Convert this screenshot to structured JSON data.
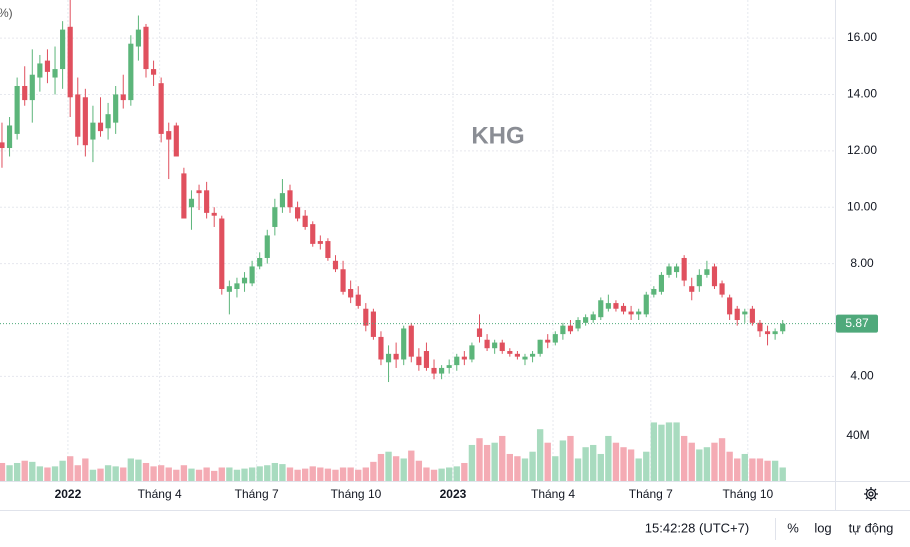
{
  "chart_data": {
    "type": "candlestick",
    "title": "KHG",
    "header_fragment": "%)",
    "up_color": "#5cb57a",
    "down_color": "#e0505e",
    "up_volume_color": "#a8dbbf",
    "down_volume_color": "#f4abb4",
    "last_price_color": "#4fa97b",
    "grid": true,
    "open": [
      12.3,
      12.1,
      12.6,
      14.3,
      13.8,
      14.6,
      15.2,
      14.6,
      14.9,
      16.4,
      14.0,
      13.9,
      12.4,
      13.0,
      12.8,
      13.0,
      14.0,
      13.8,
      15.7,
      16.4,
      14.9,
      14.4,
      12.7,
      12.9,
      11.2,
      10.0,
      10.6,
      10.6,
      9.8,
      9.6,
      7.0,
      7.1,
      7.3,
      7.3,
      7.9,
      8.2,
      9.3,
      10.0,
      10.6,
      10.0,
      9.7,
      9.4,
      8.8,
      8.8,
      8.1,
      7.8,
      7.1,
      6.9,
      6.4,
      6.3,
      5.4,
      4.5,
      4.8,
      4.6,
      5.8,
      4.7,
      4.9,
      4.3,
      4.1,
      4.3,
      4.4,
      4.7,
      4.6,
      5.7,
      5.3,
      5.0,
      5.2,
      4.9,
      4.8,
      4.6,
      4.7,
      4.8,
      5.3,
      5.2,
      5.5,
      5.8,
      5.7,
      5.9,
      6.0,
      6.1,
      6.4,
      6.6,
      6.5,
      6.3,
      6.2,
      6.2,
      6.9,
      7.0,
      7.6,
      7.7,
      8.2,
      7.2,
      7.2,
      7.6,
      7.9,
      7.3,
      6.8,
      6.4,
      6.2,
      6.4,
      5.9,
      5.6,
      5.5,
      5.6
    ],
    "high": [
      13.0,
      13.2,
      14.6,
      15.0,
      15.6,
      15.4,
      15.6,
      15.7,
      16.6,
      17.4,
      14.6,
      14.2,
      13.6,
      13.9,
      13.7,
      14.3,
      14.7,
      16.1,
      16.8,
      16.5,
      15.2,
      14.6,
      13.0,
      13.0,
      11.4,
      10.6,
      10.8,
      10.9,
      10.0,
      9.7,
      7.4,
      7.5,
      7.7,
      8.1,
      8.4,
      9.2,
      10.3,
      11.0,
      10.8,
      10.2,
      9.9,
      9.5,
      9.0,
      8.9,
      8.3,
      8.1,
      7.4,
      7.2,
      6.6,
      6.4,
      5.6,
      5.1,
      5.2,
      5.8,
      5.9,
      5.0,
      5.2,
      4.6,
      4.4,
      4.6,
      4.8,
      4.9,
      5.2,
      6.2,
      5.5,
      5.3,
      5.3,
      5.0,
      4.9,
      4.8,
      4.9,
      5.3,
      5.5,
      5.6,
      5.9,
      6.0,
      6.1,
      6.2,
      6.3,
      6.8,
      6.9,
      6.7,
      6.6,
      6.5,
      6.4,
      7.0,
      7.2,
      7.7,
      8.0,
      8.0,
      8.3,
      7.5,
      7.8,
      8.1,
      8.0,
      7.4,
      6.9,
      6.5,
      6.4,
      6.5,
      6.0,
      5.8,
      5.7,
      6.0
    ],
    "low": [
      11.4,
      11.8,
      12.4,
      13.6,
      13.0,
      14.1,
      14.4,
      14.0,
      14.2,
      13.2,
      12.2,
      11.8,
      11.6,
      12.5,
      12.4,
      12.6,
      13.5,
      13.6,
      15.2,
      14.6,
      14.3,
      12.3,
      11.0,
      11.8,
      9.6,
      9.2,
      9.9,
      9.6,
      9.3,
      6.9,
      6.2,
      6.8,
      7.0,
      7.2,
      7.8,
      8.0,
      9.0,
      9.8,
      9.8,
      9.5,
      9.2,
      8.6,
      8.5,
      8.1,
      7.7,
      6.9,
      6.6,
      6.4,
      5.6,
      5.3,
      4.4,
      3.8,
      4.3,
      4.4,
      4.5,
      4.2,
      4.2,
      3.9,
      3.9,
      4.1,
      4.2,
      4.4,
      4.5,
      5.2,
      4.9,
      4.8,
      4.8,
      4.7,
      4.6,
      4.4,
      4.5,
      4.7,
      5.0,
      5.1,
      5.3,
      5.5,
      5.6,
      5.8,
      5.9,
      6.0,
      6.3,
      6.3,
      6.2,
      6.0,
      6.0,
      6.1,
      6.8,
      6.9,
      7.5,
      7.5,
      7.2,
      6.7,
      7.0,
      7.5,
      7.1,
      6.8,
      6.0,
      5.8,
      5.9,
      5.8,
      5.4,
      5.1,
      5.3,
      5.5
    ],
    "close": [
      12.1,
      12.9,
      14.3,
      13.8,
      14.7,
      15.1,
      14.8,
      14.9,
      16.3,
      13.9,
      12.5,
      12.2,
      13.0,
      12.7,
      13.3,
      14.0,
      13.8,
      15.8,
      16.3,
      14.9,
      14.7,
      12.6,
      12.4,
      11.8,
      9.6,
      10.3,
      10.5,
      9.8,
      9.7,
      7.1,
      7.2,
      7.3,
      7.5,
      7.9,
      8.2,
      9.0,
      10.0,
      10.5,
      10.0,
      9.6,
      9.3,
      8.7,
      8.7,
      8.2,
      7.8,
      7.0,
      6.8,
      6.5,
      5.8,
      5.4,
      4.6,
      4.8,
      4.6,
      5.7,
      4.7,
      4.4,
      4.3,
      4.1,
      4.3,
      4.4,
      4.7,
      4.6,
      5.1,
      5.4,
      5.0,
      5.2,
      4.9,
      4.8,
      4.7,
      4.7,
      4.8,
      5.3,
      5.2,
      5.5,
      5.8,
      5.6,
      6.0,
      6.1,
      6.2,
      6.7,
      6.6,
      6.4,
      6.3,
      6.2,
      6.3,
      6.9,
      7.1,
      7.6,
      7.9,
      7.9,
      7.4,
      7.0,
      7.6,
      7.8,
      7.2,
      6.9,
      6.2,
      6.0,
      6.3,
      5.9,
      5.6,
      5.5,
      5.6,
      5.87
    ],
    "volume": [
      16000000,
      14000000,
      16000000,
      18000000,
      17000000,
      13000000,
      12000000,
      13000000,
      18000000,
      22000000,
      14000000,
      20000000,
      10000000,
      11000000,
      14000000,
      13000000,
      12000000,
      20000000,
      19000000,
      16000000,
      13000000,
      14000000,
      12000000,
      10000000,
      14000000,
      11000000,
      10000000,
      12000000,
      9000000,
      12000000,
      12000000,
      10000000,
      11000000,
      12000000,
      13000000,
      14000000,
      16000000,
      15000000,
      12000000,
      10000000,
      11000000,
      13000000,
      12000000,
      11000000,
      10000000,
      12000000,
      12000000,
      10000000,
      12000000,
      17000000,
      24000000,
      26000000,
      22000000,
      20000000,
      27000000,
      18000000,
      12000000,
      10000000,
      11000000,
      12000000,
      13000000,
      16000000,
      32000000,
      38000000,
      32000000,
      34000000,
      40000000,
      24000000,
      22000000,
      20000000,
      26000000,
      46000000,
      34000000,
      22000000,
      36000000,
      40000000,
      20000000,
      30000000,
      32000000,
      24000000,
      40000000,
      34000000,
      30000000,
      28000000,
      20000000,
      26000000,
      52000000,
      50000000,
      52000000,
      52000000,
      40000000,
      34000000,
      28000000,
      30000000,
      34000000,
      38000000,
      26000000,
      20000000,
      24000000,
      20000000,
      20000000,
      18000000,
      18000000,
      12000000
    ],
    "ylim": [
      0.29,
      17.35
    ],
    "yticks": [
      {
        "value": 4,
        "label": "4.00"
      },
      {
        "value": 8,
        "label": "8.00"
      },
      {
        "value": 10,
        "label": "10.00"
      },
      {
        "value": 12,
        "label": "12.00"
      },
      {
        "value": 14,
        "label": "14.00"
      },
      {
        "value": 16,
        "label": "16.00"
      }
    ],
    "vlim": [
      0,
      427000000
    ],
    "vticks": [
      {
        "value": 40000000,
        "label": "40M"
      }
    ],
    "xlim": [
      -0.26,
      109.9
    ],
    "xticks": [
      {
        "value": 8.7,
        "label": "2022"
      },
      {
        "value": 20.8,
        "label": "Tháng 4"
      },
      {
        "value": 33.6,
        "label": "Tháng 7"
      },
      {
        "value": 46.7,
        "label": "Tháng 10"
      },
      {
        "value": 59.5,
        "label": "2023"
      },
      {
        "value": 72.7,
        "label": "Tháng 4"
      },
      {
        "value": 85.6,
        "label": "Tháng 7"
      },
      {
        "value": 98.4,
        "label": "Tháng 10"
      }
    ]
  },
  "toolbar": {
    "time": "15:42:28 (UTC+7)",
    "percent": "%",
    "log": "log",
    "auto": "tự động"
  }
}
